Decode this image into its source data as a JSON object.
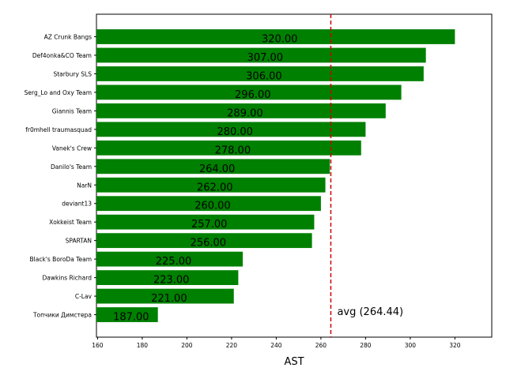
{
  "chart_data": {
    "type": "bar",
    "orientation": "horizontal",
    "categories": [
      "AZ Crunk Bangs",
      "Def4onka&CO Team",
      "Starbury SLS",
      "Serg_Lo and Oxy Team",
      "Giannis Team",
      "fr0mhell traumasquad",
      "Vanek's Crew",
      "Danilo's Team",
      "NarN",
      "deviant13",
      "Xokkeist Team",
      "SPARTAN",
      "Black's BoroDa Team",
      "Dawkins Richard",
      "C-Lav",
      "Топчики Димстера"
    ],
    "values": [
      320,
      307,
      306,
      296,
      289,
      280,
      278,
      264,
      262,
      260,
      257,
      256,
      225,
      223,
      221,
      187
    ],
    "value_labels": [
      "320.00",
      "307.00",
      "306.00",
      "296.00",
      "289.00",
      "280.00",
      "278.00",
      "264.00",
      "262.00",
      "260.00",
      "257.00",
      "256.00",
      "225.00",
      "223.00",
      "221.00",
      "187.00"
    ],
    "xlabel": "AST",
    "xlim": [
      159.5,
      336.5
    ],
    "xticks": [
      "160",
      "180",
      "200",
      "220",
      "240",
      "260",
      "280",
      "300",
      "320"
    ],
    "bar_color": "#008000",
    "average": 264.44,
    "average_label": "avg (264.44)",
    "average_line_color": "#cc0000",
    "grid": false
  }
}
